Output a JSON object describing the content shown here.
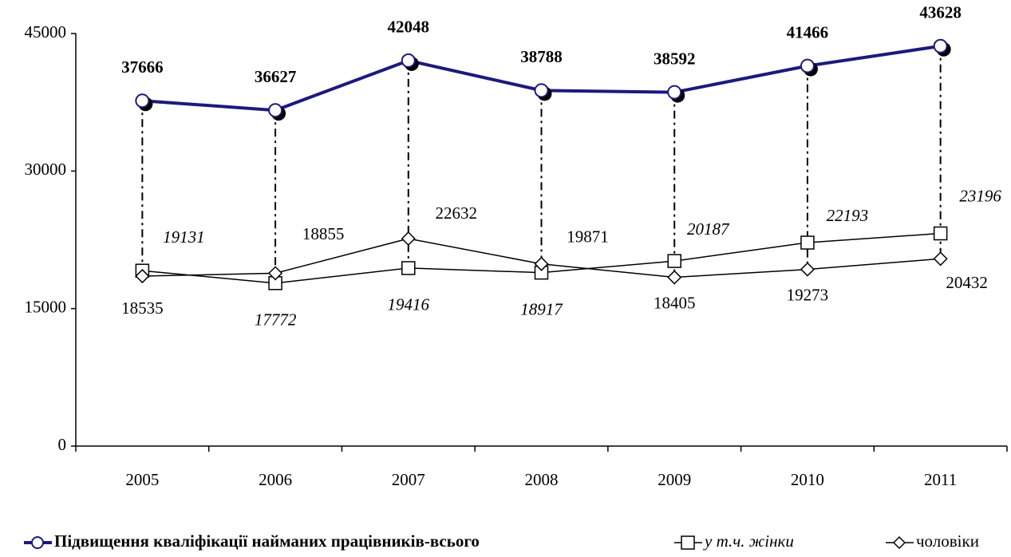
{
  "chart_data": {
    "type": "line",
    "categories": [
      "2005",
      "2006",
      "2007",
      "2008",
      "2009",
      "2010",
      "2011"
    ],
    "series": [
      {
        "name": "Підвищення кваліфікації найманих працівників-всього",
        "color": "#1c1a7c",
        "marker": "circle",
        "values": [
          37666,
          36627,
          42048,
          38788,
          38592,
          41466,
          43628
        ]
      },
      {
        "name": "у т.ч. жінки",
        "color": "#000000",
        "marker": "square",
        "values": [
          19131,
          17772,
          19416,
          18917,
          20187,
          22193,
          23196
        ]
      },
      {
        "name": "чоловіки",
        "color": "#000000",
        "marker": "diamond",
        "values": [
          18535,
          18855,
          22632,
          19871,
          18405,
          19273,
          20432
        ]
      }
    ],
    "ylim": [
      0,
      45000
    ],
    "yticks": [
      0,
      15000,
      30000,
      45000
    ],
    "grid": false,
    "legend": "bottom"
  }
}
